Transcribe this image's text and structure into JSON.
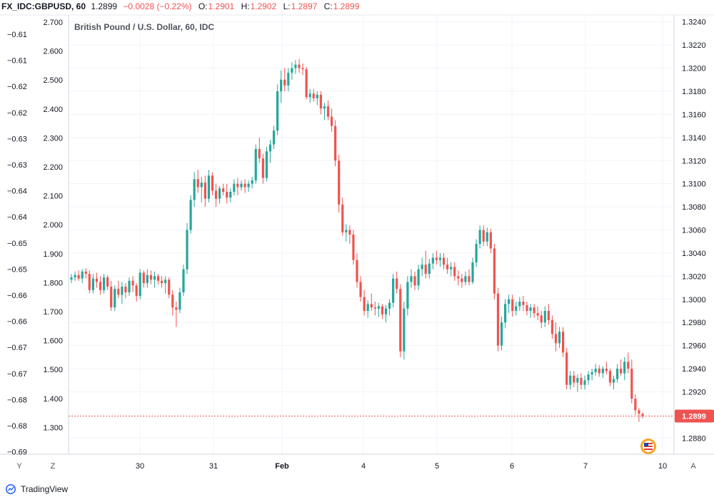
{
  "header": {
    "symbol": "FX_IDC:GBPUSD, 60",
    "last": "1.2899",
    "change": "−0.0028 (−0.22%)",
    "o_label": "O:",
    "o_value": "1.2901",
    "h_label": "H:",
    "h_value": "1.2902",
    "l_label": "L:",
    "l_value": "1.2897",
    "c_label": "C:",
    "c_value": "1.2899",
    "change_color": "#ef5350"
  },
  "legend_title": "British Pound / U.S. Dollar, 60, IDC",
  "price_badge": "1.2899",
  "footer": {
    "brand": "TradingView"
  },
  "buttons": {
    "y": "Y",
    "z": "Z",
    "a": "A"
  },
  "chart_data": {
    "type": "candlestick",
    "colors": {
      "up": "#26a69a",
      "down": "#ef5350",
      "last_price_line": "#ef5350"
    },
    "x_ticks": [
      "30",
      "31",
      "Feb",
      "4",
      "5",
      "6",
      "7",
      "10"
    ],
    "right_axis": {
      "ticks": [
        "1.3240",
        "1.3220",
        "1.3200",
        "1.3180",
        "1.3160",
        "1.3140",
        "1.3120",
        "1.3100",
        "1.3080",
        "1.3060",
        "1.3040",
        "1.3020",
        "1.3000",
        "1.2980",
        "1.2960",
        "1.2940",
        "1.2920",
        "1.2899",
        "1.2880"
      ],
      "range": [
        1.2866,
        1.3246
      ]
    },
    "left_axis_1": {
      "ticks": [
        "2.700",
        "2.600",
        "2.500",
        "2.400",
        "2.300",
        "2.200",
        "2.100",
        "2.000",
        "1.900",
        "1.800",
        "1.700",
        "1.600",
        "1.500",
        "1.400",
        "1.300"
      ]
    },
    "left_axis_2": {
      "ticks": [
        "−0.61",
        "−0.61",
        "−0.62",
        "−0.62",
        "−0.63",
        "−0.63",
        "−0.64",
        "−0.64",
        "−0.65",
        "−0.65",
        "−0.66",
        "−0.66",
        "−0.67",
        "−0.67",
        "−0.68",
        "−0.68",
        "−0.69"
      ]
    },
    "last_price": 1.2899,
    "candles": [
      {
        "o": 1.3017,
        "h": 1.3022,
        "l": 1.3014,
        "c": 1.3019
      },
      {
        "o": 1.3019,
        "h": 1.3024,
        "l": 1.3016,
        "c": 1.3021
      },
      {
        "o": 1.3021,
        "h": 1.3025,
        "l": 1.3016,
        "c": 1.3018
      },
      {
        "o": 1.3018,
        "h": 1.3026,
        "l": 1.3014,
        "c": 1.3024
      },
      {
        "o": 1.3024,
        "h": 1.3027,
        "l": 1.3018,
        "c": 1.3022
      },
      {
        "o": 1.3022,
        "h": 1.3025,
        "l": 1.3005,
        "c": 1.3008
      },
      {
        "o": 1.3008,
        "h": 1.3022,
        "l": 1.3005,
        "c": 1.3018
      },
      {
        "o": 1.3018,
        "h": 1.3023,
        "l": 1.301,
        "c": 1.3015
      },
      {
        "o": 1.3015,
        "h": 1.302,
        "l": 1.3004,
        "c": 1.3008
      },
      {
        "o": 1.3008,
        "h": 1.3022,
        "l": 1.3005,
        "c": 1.3019
      },
      {
        "o": 1.3019,
        "h": 1.3021,
        "l": 1.3008,
        "c": 1.3011
      },
      {
        "o": 1.3011,
        "h": 1.3016,
        "l": 1.299,
        "c": 1.2993
      },
      {
        "o": 1.2993,
        "h": 1.3012,
        "l": 1.299,
        "c": 1.3009
      },
      {
        "o": 1.3009,
        "h": 1.3016,
        "l": 1.3001,
        "c": 1.3004
      },
      {
        "o": 1.3004,
        "h": 1.3015,
        "l": 1.2996,
        "c": 1.3011
      },
      {
        "o": 1.3011,
        "h": 1.3014,
        "l": 1.3001,
        "c": 1.3006
      },
      {
        "o": 1.3006,
        "h": 1.3019,
        "l": 1.3003,
        "c": 1.3016
      },
      {
        "o": 1.3016,
        "h": 1.302,
        "l": 1.3006,
        "c": 1.3012
      },
      {
        "o": 1.3012,
        "h": 1.3014,
        "l": 1.2998,
        "c": 1.3003
      },
      {
        "o": 1.3003,
        "h": 1.3026,
        "l": 1.3,
        "c": 1.3023
      },
      {
        "o": 1.3023,
        "h": 1.3025,
        "l": 1.301,
        "c": 1.3014
      },
      {
        "o": 1.3014,
        "h": 1.3026,
        "l": 1.301,
        "c": 1.3021
      },
      {
        "o": 1.3021,
        "h": 1.3025,
        "l": 1.3013,
        "c": 1.3017
      },
      {
        "o": 1.3017,
        "h": 1.3024,
        "l": 1.301,
        "c": 1.302
      },
      {
        "o": 1.302,
        "h": 1.3022,
        "l": 1.3013,
        "c": 1.3016
      },
      {
        "o": 1.3016,
        "h": 1.302,
        "l": 1.301,
        "c": 1.3014
      },
      {
        "o": 1.3014,
        "h": 1.302,
        "l": 1.3005,
        "c": 1.3017
      },
      {
        "o": 1.3017,
        "h": 1.3019,
        "l": 1.3001,
        "c": 1.3004
      },
      {
        "o": 1.3004,
        "h": 1.3008,
        "l": 1.2986,
        "c": 1.2993
      },
      {
        "o": 1.2993,
        "h": 1.2998,
        "l": 1.2976,
        "c": 1.2991
      },
      {
        "o": 1.2991,
        "h": 1.301,
        "l": 1.2988,
        "c": 1.3006
      },
      {
        "o": 1.3006,
        "h": 1.303,
        "l": 1.3003,
        "c": 1.3026
      },
      {
        "o": 1.3026,
        "h": 1.3066,
        "l": 1.3022,
        "c": 1.306
      },
      {
        "o": 1.306,
        "h": 1.309,
        "l": 1.3057,
        "c": 1.3086
      },
      {
        "o": 1.3086,
        "h": 1.311,
        "l": 1.308,
        "c": 1.3104
      },
      {
        "o": 1.3104,
        "h": 1.3112,
        "l": 1.3092,
        "c": 1.3097
      },
      {
        "o": 1.3097,
        "h": 1.3106,
        "l": 1.3084,
        "c": 1.3101
      },
      {
        "o": 1.3101,
        "h": 1.3107,
        "l": 1.308,
        "c": 1.3087
      },
      {
        "o": 1.3087,
        "h": 1.3112,
        "l": 1.3084,
        "c": 1.3107
      },
      {
        "o": 1.3107,
        "h": 1.311,
        "l": 1.309,
        "c": 1.3094
      },
      {
        "o": 1.3094,
        "h": 1.31,
        "l": 1.308,
        "c": 1.3087
      },
      {
        "o": 1.3087,
        "h": 1.3098,
        "l": 1.3083,
        "c": 1.3096
      },
      {
        "o": 1.3096,
        "h": 1.31,
        "l": 1.309,
        "c": 1.3093
      },
      {
        "o": 1.3093,
        "h": 1.31,
        "l": 1.3083,
        "c": 1.3088
      },
      {
        "o": 1.3088,
        "h": 1.3096,
        "l": 1.3084,
        "c": 1.3093
      },
      {
        "o": 1.3093,
        "h": 1.3104,
        "l": 1.309,
        "c": 1.31
      },
      {
        "o": 1.31,
        "h": 1.3105,
        "l": 1.309,
        "c": 1.3097
      },
      {
        "o": 1.3097,
        "h": 1.3103,
        "l": 1.3094,
        "c": 1.31
      },
      {
        "o": 1.31,
        "h": 1.3104,
        "l": 1.3092,
        "c": 1.3097
      },
      {
        "o": 1.3097,
        "h": 1.3103,
        "l": 1.3093,
        "c": 1.31
      },
      {
        "o": 1.31,
        "h": 1.3106,
        "l": 1.3096,
        "c": 1.3103
      },
      {
        "o": 1.3103,
        "h": 1.3134,
        "l": 1.31,
        "c": 1.313
      },
      {
        "o": 1.313,
        "h": 1.314,
        "l": 1.3118,
        "c": 1.3122
      },
      {
        "o": 1.3122,
        "h": 1.3126,
        "l": 1.31,
        "c": 1.3105
      },
      {
        "o": 1.3105,
        "h": 1.3132,
        "l": 1.3102,
        "c": 1.3128
      },
      {
        "o": 1.3128,
        "h": 1.3138,
        "l": 1.3118,
        "c": 1.3134
      },
      {
        "o": 1.3134,
        "h": 1.315,
        "l": 1.313,
        "c": 1.3146
      },
      {
        "o": 1.3146,
        "h": 1.3186,
        "l": 1.3142,
        "c": 1.318
      },
      {
        "o": 1.318,
        "h": 1.3198,
        "l": 1.317,
        "c": 1.319
      },
      {
        "o": 1.319,
        "h": 1.32,
        "l": 1.318,
        "c": 1.3185
      },
      {
        "o": 1.3185,
        "h": 1.32,
        "l": 1.318,
        "c": 1.3196
      },
      {
        "o": 1.3196,
        "h": 1.3205,
        "l": 1.319,
        "c": 1.32
      },
      {
        "o": 1.32,
        "h": 1.3207,
        "l": 1.3195,
        "c": 1.3203
      },
      {
        "o": 1.3203,
        "h": 1.3208,
        "l": 1.3196,
        "c": 1.32
      },
      {
        "o": 1.32,
        "h": 1.3204,
        "l": 1.3194,
        "c": 1.3199
      },
      {
        "o": 1.3199,
        "h": 1.3201,
        "l": 1.3173,
        "c": 1.3175
      },
      {
        "o": 1.3175,
        "h": 1.3182,
        "l": 1.317,
        "c": 1.3178
      },
      {
        "o": 1.3178,
        "h": 1.3182,
        "l": 1.3171,
        "c": 1.3174
      },
      {
        "o": 1.3174,
        "h": 1.318,
        "l": 1.3168,
        "c": 1.3177
      },
      {
        "o": 1.3177,
        "h": 1.318,
        "l": 1.316,
        "c": 1.3165
      },
      {
        "o": 1.3165,
        "h": 1.317,
        "l": 1.3155,
        "c": 1.3167
      },
      {
        "o": 1.3167,
        "h": 1.3172,
        "l": 1.3155,
        "c": 1.3158
      },
      {
        "o": 1.3158,
        "h": 1.3165,
        "l": 1.3145,
        "c": 1.315
      },
      {
        "o": 1.315,
        "h": 1.3155,
        "l": 1.3115,
        "c": 1.312
      },
      {
        "o": 1.312,
        "h": 1.3125,
        "l": 1.3075,
        "c": 1.3082
      },
      {
        "o": 1.3082,
        "h": 1.3088,
        "l": 1.3055,
        "c": 1.3058
      },
      {
        "o": 1.3058,
        "h": 1.3065,
        "l": 1.305,
        "c": 1.306
      },
      {
        "o": 1.306,
        "h": 1.3064,
        "l": 1.3048,
        "c": 1.3056
      },
      {
        "o": 1.3056,
        "h": 1.306,
        "l": 1.303,
        "c": 1.3034
      },
      {
        "o": 1.3034,
        "h": 1.304,
        "l": 1.301,
        "c": 1.3015
      },
      {
        "o": 1.3015,
        "h": 1.302,
        "l": 1.2998,
        "c": 1.3002
      },
      {
        "o": 1.3002,
        "h": 1.3008,
        "l": 1.2986,
        "c": 1.299
      },
      {
        "o": 1.299,
        "h": 1.2999,
        "l": 1.2984,
        "c": 1.2996
      },
      {
        "o": 1.2996,
        "h": 1.3005,
        "l": 1.299,
        "c": 1.2993
      },
      {
        "o": 1.2993,
        "h": 1.2998,
        "l": 1.2986,
        "c": 1.2992
      },
      {
        "o": 1.2992,
        "h": 1.2997,
        "l": 1.2985,
        "c": 1.2994
      },
      {
        "o": 1.2994,
        "h": 1.2996,
        "l": 1.2983,
        "c": 1.2987
      },
      {
        "o": 1.2987,
        "h": 1.2995,
        "l": 1.298,
        "c": 1.2992
      },
      {
        "o": 1.2992,
        "h": 1.3,
        "l": 1.2986,
        "c": 1.2997
      },
      {
        "o": 1.2997,
        "h": 1.3022,
        "l": 1.2993,
        "c": 1.3018
      },
      {
        "o": 1.3018,
        "h": 1.3024,
        "l": 1.3005,
        "c": 1.3009
      },
      {
        "o": 1.3009,
        "h": 1.3013,
        "l": 1.295,
        "c": 1.2955
      },
      {
        "o": 1.2955,
        "h": 1.2998,
        "l": 1.2948,
        "c": 1.2992
      },
      {
        "o": 1.2992,
        "h": 1.302,
        "l": 1.2986,
        "c": 1.3015
      },
      {
        "o": 1.3015,
        "h": 1.3026,
        "l": 1.301,
        "c": 1.302
      },
      {
        "o": 1.302,
        "h": 1.3024,
        "l": 1.3008,
        "c": 1.3012
      },
      {
        "o": 1.3012,
        "h": 1.303,
        "l": 1.3008,
        "c": 1.3026
      },
      {
        "o": 1.3026,
        "h": 1.3036,
        "l": 1.302,
        "c": 1.303
      },
      {
        "o": 1.303,
        "h": 1.3042,
        "l": 1.3018,
        "c": 1.3022
      },
      {
        "o": 1.3022,
        "h": 1.3035,
        "l": 1.3018,
        "c": 1.3031
      },
      {
        "o": 1.3031,
        "h": 1.304,
        "l": 1.3026,
        "c": 1.3036
      },
      {
        "o": 1.3036,
        "h": 1.3042,
        "l": 1.303,
        "c": 1.3034
      },
      {
        "o": 1.3034,
        "h": 1.304,
        "l": 1.3028,
        "c": 1.3036
      },
      {
        "o": 1.3036,
        "h": 1.304,
        "l": 1.3026,
        "c": 1.303
      },
      {
        "o": 1.303,
        "h": 1.3036,
        "l": 1.3022,
        "c": 1.3026
      },
      {
        "o": 1.3026,
        "h": 1.3032,
        "l": 1.302,
        "c": 1.3028
      },
      {
        "o": 1.3028,
        "h": 1.3032,
        "l": 1.3016,
        "c": 1.302
      },
      {
        "o": 1.302,
        "h": 1.3025,
        "l": 1.3012,
        "c": 1.3018
      },
      {
        "o": 1.3018,
        "h": 1.3022,
        "l": 1.301,
        "c": 1.3015
      },
      {
        "o": 1.3015,
        "h": 1.3024,
        "l": 1.3012,
        "c": 1.302
      },
      {
        "o": 1.302,
        "h": 1.3026,
        "l": 1.3012,
        "c": 1.3015
      },
      {
        "o": 1.3015,
        "h": 1.3036,
        "l": 1.3013,
        "c": 1.3032
      },
      {
        "o": 1.3032,
        "h": 1.3052,
        "l": 1.3028,
        "c": 1.3048
      },
      {
        "o": 1.3048,
        "h": 1.3064,
        "l": 1.3044,
        "c": 1.306
      },
      {
        "o": 1.306,
        "h": 1.3064,
        "l": 1.3046,
        "c": 1.305
      },
      {
        "o": 1.305,
        "h": 1.3062,
        "l": 1.3046,
        "c": 1.3058
      },
      {
        "o": 1.3058,
        "h": 1.3061,
        "l": 1.304,
        "c": 1.3044
      },
      {
        "o": 1.3044,
        "h": 1.3048,
        "l": 1.3,
        "c": 1.3005
      },
      {
        "o": 1.3005,
        "h": 1.301,
        "l": 1.2955,
        "c": 1.296
      },
      {
        "o": 1.296,
        "h": 1.2985,
        "l": 1.2956,
        "c": 1.298
      },
      {
        "o": 1.298,
        "h": 1.3,
        "l": 1.2975,
        "c": 1.2996
      },
      {
        "o": 1.2996,
        "h": 1.3004,
        "l": 1.2988,
        "c": 1.3
      },
      {
        "o": 1.3,
        "h": 1.3004,
        "l": 1.2985,
        "c": 1.299
      },
      {
        "o": 1.299,
        "h": 1.2998,
        "l": 1.2986,
        "c": 1.2994
      },
      {
        "o": 1.2994,
        "h": 1.3002,
        "l": 1.299,
        "c": 1.2998
      },
      {
        "o": 1.2998,
        "h": 1.3003,
        "l": 1.299,
        "c": 1.2995
      },
      {
        "o": 1.2995,
        "h": 1.2998,
        "l": 1.2986,
        "c": 1.299
      },
      {
        "o": 1.299,
        "h": 1.2996,
        "l": 1.2984,
        "c": 1.2993
      },
      {
        "o": 1.2993,
        "h": 1.2996,
        "l": 1.2984,
        "c": 1.2988
      },
      {
        "o": 1.2988,
        "h": 1.2994,
        "l": 1.2982,
        "c": 1.2986
      },
      {
        "o": 1.2986,
        "h": 1.299,
        "l": 1.2975,
        "c": 1.298
      },
      {
        "o": 1.298,
        "h": 1.2994,
        "l": 1.2976,
        "c": 1.299
      },
      {
        "o": 1.299,
        "h": 1.2996,
        "l": 1.2978,
        "c": 1.2982
      },
      {
        "o": 1.2982,
        "h": 1.2986,
        "l": 1.2966,
        "c": 1.297
      },
      {
        "o": 1.297,
        "h": 1.298,
        "l": 1.2955,
        "c": 1.2962
      },
      {
        "o": 1.2962,
        "h": 1.2976,
        "l": 1.2958,
        "c": 1.2972
      },
      {
        "o": 1.2972,
        "h": 1.2976,
        "l": 1.295,
        "c": 1.2954
      },
      {
        "o": 1.2954,
        "h": 1.2958,
        "l": 1.2922,
        "c": 1.2926
      },
      {
        "o": 1.2926,
        "h": 1.2938,
        "l": 1.2922,
        "c": 1.2934
      },
      {
        "o": 1.2934,
        "h": 1.2938,
        "l": 1.2924,
        "c": 1.2928
      },
      {
        "o": 1.2928,
        "h": 1.2935,
        "l": 1.292,
        "c": 1.2932
      },
      {
        "o": 1.2932,
        "h": 1.2936,
        "l": 1.2922,
        "c": 1.2926
      },
      {
        "o": 1.2926,
        "h": 1.2934,
        "l": 1.2922,
        "c": 1.293
      },
      {
        "o": 1.293,
        "h": 1.2938,
        "l": 1.2926,
        "c": 1.2935
      },
      {
        "o": 1.2935,
        "h": 1.294,
        "l": 1.293,
        "c": 1.2937
      },
      {
        "o": 1.2937,
        "h": 1.2944,
        "l": 1.2934,
        "c": 1.294
      },
      {
        "o": 1.294,
        "h": 1.2943,
        "l": 1.2933,
        "c": 1.2936
      },
      {
        "o": 1.2936,
        "h": 1.2942,
        "l": 1.2932,
        "c": 1.294
      },
      {
        "o": 1.294,
        "h": 1.2946,
        "l": 1.2935,
        "c": 1.2938
      },
      {
        "o": 1.2938,
        "h": 1.294,
        "l": 1.2925,
        "c": 1.2928
      },
      {
        "o": 1.2928,
        "h": 1.2934,
        "l": 1.2922,
        "c": 1.2931
      },
      {
        "o": 1.2931,
        "h": 1.2944,
        "l": 1.2928,
        "c": 1.294
      },
      {
        "o": 1.294,
        "h": 1.2948,
        "l": 1.2934,
        "c": 1.2936
      },
      {
        "o": 1.2936,
        "h": 1.295,
        "l": 1.293,
        "c": 1.2946
      },
      {
        "o": 1.2946,
        "h": 1.2954,
        "l": 1.2936,
        "c": 1.294
      },
      {
        "o": 1.294,
        "h": 1.2948,
        "l": 1.291,
        "c": 1.2914
      },
      {
        "o": 1.2914,
        "h": 1.2918,
        "l": 1.29,
        "c": 1.2904
      },
      {
        "o": 1.2904,
        "h": 1.2906,
        "l": 1.2894,
        "c": 1.2901
      },
      {
        "o": 1.2901,
        "h": 1.2902,
        "l": 1.2897,
        "c": 1.2899
      }
    ]
  }
}
